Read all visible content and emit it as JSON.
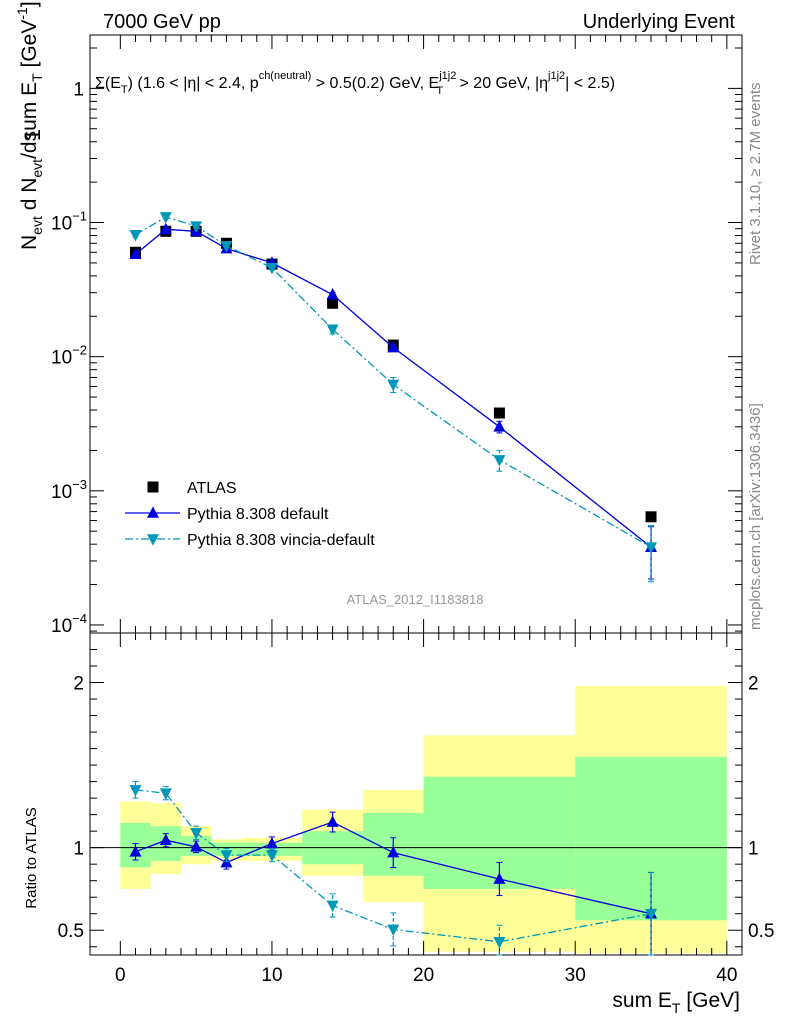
{
  "header": {
    "left": "7000 GeV pp",
    "right": "Underlying Event"
  },
  "side_labels": {
    "rivet": "Rivet 3.1.10, ≥ 2.7M events",
    "mcplots": "mcplots.cern.ch [arXiv:1306.3436]"
  },
  "chart_data": [
    {
      "type": "scatter",
      "panel": "main",
      "title": "Σ(E_T) (1.6 < |η| < 2.4, p^ch(neutral) > 0.5(0.2) GeV, E_T^j1j2 > 20 GeV, |η^j1j2| < 2.5)",
      "ylabel": "1/N_evt dN_evt/dsum E_T [GeV^-1]",
      "watermark": "ATLAS_2012_I1183818",
      "yscale": "log",
      "ylim": [
        0.0001,
        2.5
      ],
      "xlim": [
        -2,
        41
      ],
      "ytick_labels": [
        {
          "base": "10",
          "exp": "−4",
          "value": 0.0001
        },
        {
          "base": "10",
          "exp": "−3",
          "value": 0.001
        },
        {
          "base": "10",
          "exp": "−2",
          "value": 0.01
        },
        {
          "base": "10",
          "exp": "−1",
          "value": 0.1
        },
        {
          "base": "1",
          "exp": "",
          "value": 1
        }
      ],
      "legend": {
        "placement": "bottom-left",
        "entries": [
          "ATLAS",
          "Pythia 8.308 default",
          "Pythia 8.308 vincia-default"
        ]
      },
      "series": [
        {
          "name": "ATLAS",
          "color": "#000000",
          "marker": "square",
          "x": [
            1,
            3,
            5,
            7,
            10,
            14,
            18,
            25,
            35
          ],
          "y": [
            0.06,
            0.086,
            0.086,
            0.07,
            0.049,
            0.025,
            0.0122,
            0.0038,
            0.00064
          ]
        },
        {
          "name": "Pythia 8.308 default",
          "color": "#0000dd",
          "marker": "triangle-up",
          "line": "solid",
          "x": [
            1,
            3,
            5,
            7,
            10,
            14,
            18,
            25,
            35
          ],
          "y": [
            0.058,
            0.089,
            0.086,
            0.064,
            0.05,
            0.029,
            0.0117,
            0.003,
            0.00038
          ],
          "yerr": [
            0.002,
            0.002,
            0.002,
            0.002,
            0.0015,
            0.001,
            0.0007,
            0.0003,
            0.00016
          ]
        },
        {
          "name": "Pythia 8.308 vincia-default",
          "color": "#0097b8",
          "marker": "triangle-down",
          "line": "dashdot",
          "x": [
            1,
            3,
            5,
            7,
            10,
            14,
            18,
            25,
            35
          ],
          "y": [
            0.081,
            0.11,
            0.094,
            0.067,
            0.046,
            0.016,
            0.0062,
            0.0017,
            0.00038
          ],
          "yerr": [
            0.003,
            0.003,
            0.003,
            0.002,
            0.0015,
            0.0012,
            0.0008,
            0.0003,
            0.00017
          ]
        }
      ]
    },
    {
      "type": "scatter",
      "panel": "ratio",
      "ylabel": "Ratio to ATLAS",
      "xlabel": "sum E_T [GeV]",
      "ylim": [
        0.35,
        2.3
      ],
      "xlim": [
        -2,
        41
      ],
      "xticks": [
        0,
        10,
        20,
        30,
        40
      ],
      "yticks": [
        0.5,
        1,
        2
      ],
      "reference_line": 1,
      "bands": {
        "bin_edges": [
          0,
          2,
          4,
          6,
          8,
          12,
          16,
          20,
          30,
          40
        ],
        "yellow": [
          [
            0.75,
            1.28
          ],
          [
            0.84,
            1.27
          ],
          [
            0.9,
            1.13
          ],
          [
            0.92,
            1.05
          ],
          [
            0.92,
            1.06
          ],
          [
            0.83,
            1.23
          ],
          [
            0.67,
            1.35
          ],
          [
            0.37,
            1.68
          ],
          [
            0.36,
            1.98
          ]
        ],
        "green": [
          [
            0.88,
            1.15
          ],
          [
            0.92,
            1.13
          ],
          [
            0.95,
            1.07
          ],
          [
            0.95,
            1.03
          ],
          [
            0.95,
            1.03
          ],
          [
            0.9,
            1.1
          ],
          [
            0.83,
            1.21
          ],
          [
            0.75,
            1.43
          ],
          [
            0.56,
            1.55
          ]
        ],
        "yellow_color": "#ffff99",
        "green_color": "#99ff99"
      },
      "series": [
        {
          "name": "Pythia 8.308 default",
          "color": "#0000dd",
          "marker": "triangle-up",
          "line": "solid",
          "x": [
            1,
            3,
            5,
            7,
            10,
            14,
            18,
            25,
            35
          ],
          "y": [
            0.975,
            1.045,
            1.005,
            0.91,
            1.025,
            1.155,
            0.97,
            0.81,
            0.6
          ],
          "yerr": [
            0.05,
            0.04,
            0.035,
            0.04,
            0.04,
            0.06,
            0.09,
            0.1,
            0.25
          ]
        },
        {
          "name": "Pythia 8.308 vincia-default",
          "color": "#0097b8",
          "marker": "triangle-down",
          "line": "dashdot",
          "x": [
            1,
            3,
            5,
            7,
            10,
            14,
            18,
            25,
            35
          ],
          "y": [
            1.35,
            1.33,
            1.09,
            0.955,
            0.955,
            0.65,
            0.505,
            0.43,
            0.6
          ],
          "yerr": [
            0.05,
            0.04,
            0.04,
            0.04,
            0.04,
            0.07,
            0.1,
            0.1,
            0.25
          ]
        }
      ]
    }
  ]
}
